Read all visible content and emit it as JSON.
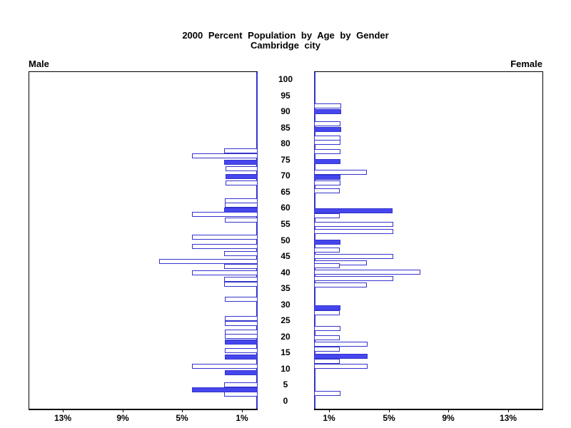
{
  "title": {
    "line1": "2000 Percent Population by Age by Gender",
    "line2": "Cambridge city"
  },
  "labels": {
    "male": "Male",
    "female": "Female"
  },
  "colors": {
    "bar_fill": "#4646ee",
    "bar_outline": "#3434cf",
    "axis": "#000000",
    "background": "#ffffff"
  },
  "chart_data": {
    "type": "bar",
    "subtype": "population-pyramid",
    "title": "2000 Percent Population by Age by Gender",
    "subtitle": "Cambridge city",
    "legend_position": "none",
    "grid": false,
    "age_axis": {
      "min": 0,
      "max": 100,
      "tick_step": 5,
      "tick_labels": [
        "0",
        "5",
        "10",
        "15",
        "20",
        "25",
        "30",
        "35",
        "40",
        "45",
        "50",
        "55",
        "60",
        "65",
        "70",
        "75",
        "80",
        "85",
        "90",
        "95",
        "100"
      ]
    },
    "pct_axis": {
      "max": 15.3,
      "tick_values": [
        1,
        5,
        9,
        13
      ],
      "male_tick_labels": [
        "13%",
        "9%",
        "5%",
        "1%"
      ],
      "female_tick_labels": [
        "1%",
        "5%",
        "9%",
        "13%"
      ]
    },
    "series": [
      {
        "name": "Male",
        "bars": [
          {
            "age": 78.0,
            "pct": 2.25,
            "filled": false
          },
          {
            "age": 76.5,
            "pct": 4.4,
            "filled": false
          },
          {
            "age": 74.5,
            "pct": 2.25,
            "filled": true
          },
          {
            "age": 72.5,
            "pct": 2.15,
            "filled": false
          },
          {
            "age": 70.0,
            "pct": 2.15,
            "filled": true
          },
          {
            "age": 68.0,
            "pct": 2.15,
            "filled": false
          },
          {
            "age": 62.6,
            "pct": 2.2,
            "filled": false
          },
          {
            "age": 61.1,
            "pct": 2.2,
            "filled": false
          },
          {
            "age": 59.7,
            "pct": 2.25,
            "filled": true
          },
          {
            "age": 58.3,
            "pct": 4.4,
            "filled": false
          },
          {
            "age": 56.5,
            "pct": 2.2,
            "filled": false
          },
          {
            "age": 51.2,
            "pct": 4.4,
            "filled": false
          },
          {
            "age": 48.3,
            "pct": 4.4,
            "filled": false
          },
          {
            "age": 46.1,
            "pct": 2.25,
            "filled": false
          },
          {
            "age": 43.6,
            "pct": 6.6,
            "filled": false
          },
          {
            "age": 42.2,
            "pct": 2.25,
            "filled": false
          },
          {
            "age": 40.1,
            "pct": 4.4,
            "filled": false
          },
          {
            "age": 38.1,
            "pct": 2.25,
            "filled": false
          },
          {
            "age": 36.6,
            "pct": 2.25,
            "filled": false
          },
          {
            "age": 31.9,
            "pct": 2.2,
            "filled": false
          },
          {
            "age": 25.9,
            "pct": 2.2,
            "filled": false
          },
          {
            "age": 24.4,
            "pct": 2.2,
            "filled": false
          },
          {
            "age": 21.7,
            "pct": 2.2,
            "filled": false
          },
          {
            "age": 20.4,
            "pct": 2.2,
            "filled": false
          },
          {
            "age": 18.7,
            "pct": 2.2,
            "filled": true
          },
          {
            "age": 15.9,
            "pct": 2.2,
            "filled": false
          },
          {
            "age": 13.9,
            "pct": 2.2,
            "filled": true
          },
          {
            "age": 11.0,
            "pct": 4.4,
            "filled": false
          },
          {
            "age": 9.1,
            "pct": 2.2,
            "filled": true
          },
          {
            "age": 5.3,
            "pct": 2.25,
            "filled": false
          },
          {
            "age": 3.8,
            "pct": 4.4,
            "filled": true
          },
          {
            "age": 2.4,
            "pct": 2.25,
            "filled": false
          }
        ]
      },
      {
        "name": "Female",
        "bars": [
          {
            "age": 92.1,
            "pct": 1.8,
            "filled": false
          },
          {
            "age": 90.3,
            "pct": 1.8,
            "filled": true
          },
          {
            "age": 86.4,
            "pct": 1.75,
            "filled": false
          },
          {
            "age": 84.6,
            "pct": 1.8,
            "filled": true
          },
          {
            "age": 82.0,
            "pct": 1.75,
            "filled": false
          },
          {
            "age": 80.7,
            "pct": 1.75,
            "filled": false
          },
          {
            "age": 77.8,
            "pct": 1.75,
            "filled": false
          },
          {
            "age": 74.7,
            "pct": 1.75,
            "filled": true
          },
          {
            "age": 71.5,
            "pct": 3.55,
            "filled": false
          },
          {
            "age": 69.8,
            "pct": 1.75,
            "filled": true
          },
          {
            "age": 68.0,
            "pct": 1.75,
            "filled": false
          },
          {
            "age": 65.6,
            "pct": 1.7,
            "filled": false
          },
          {
            "age": 59.4,
            "pct": 5.25,
            "filled": true
          },
          {
            "age": 57.8,
            "pct": 1.7,
            "filled": false
          },
          {
            "age": 55.1,
            "pct": 5.3,
            "filled": false
          },
          {
            "age": 53.1,
            "pct": 5.3,
            "filled": false
          },
          {
            "age": 49.7,
            "pct": 1.75,
            "filled": true
          },
          {
            "age": 47.2,
            "pct": 1.7,
            "filled": false
          },
          {
            "age": 45.2,
            "pct": 5.3,
            "filled": false
          },
          {
            "age": 43.2,
            "pct": 3.55,
            "filled": false
          },
          {
            "age": 42.4,
            "pct": 1.7,
            "filled": false
          },
          {
            "age": 40.4,
            "pct": 7.1,
            "filled": false
          },
          {
            "age": 38.4,
            "pct": 5.3,
            "filled": false
          },
          {
            "age": 36.4,
            "pct": 3.55,
            "filled": false
          },
          {
            "age": 29.2,
            "pct": 1.78,
            "filled": true
          },
          {
            "age": 27.8,
            "pct": 1.7,
            "filled": false
          },
          {
            "age": 22.9,
            "pct": 1.75,
            "filled": false
          },
          {
            "age": 20.0,
            "pct": 1.7,
            "filled": false
          },
          {
            "age": 18.0,
            "pct": 3.57,
            "filled": false
          },
          {
            "age": 16.4,
            "pct": 1.7,
            "filled": false
          },
          {
            "age": 14.3,
            "pct": 3.57,
            "filled": true
          },
          {
            "age": 12.7,
            "pct": 1.7,
            "filled": false
          },
          {
            "age": 11.0,
            "pct": 3.57,
            "filled": false
          },
          {
            "age": 2.7,
            "pct": 1.75,
            "filled": false
          }
        ]
      }
    ]
  }
}
